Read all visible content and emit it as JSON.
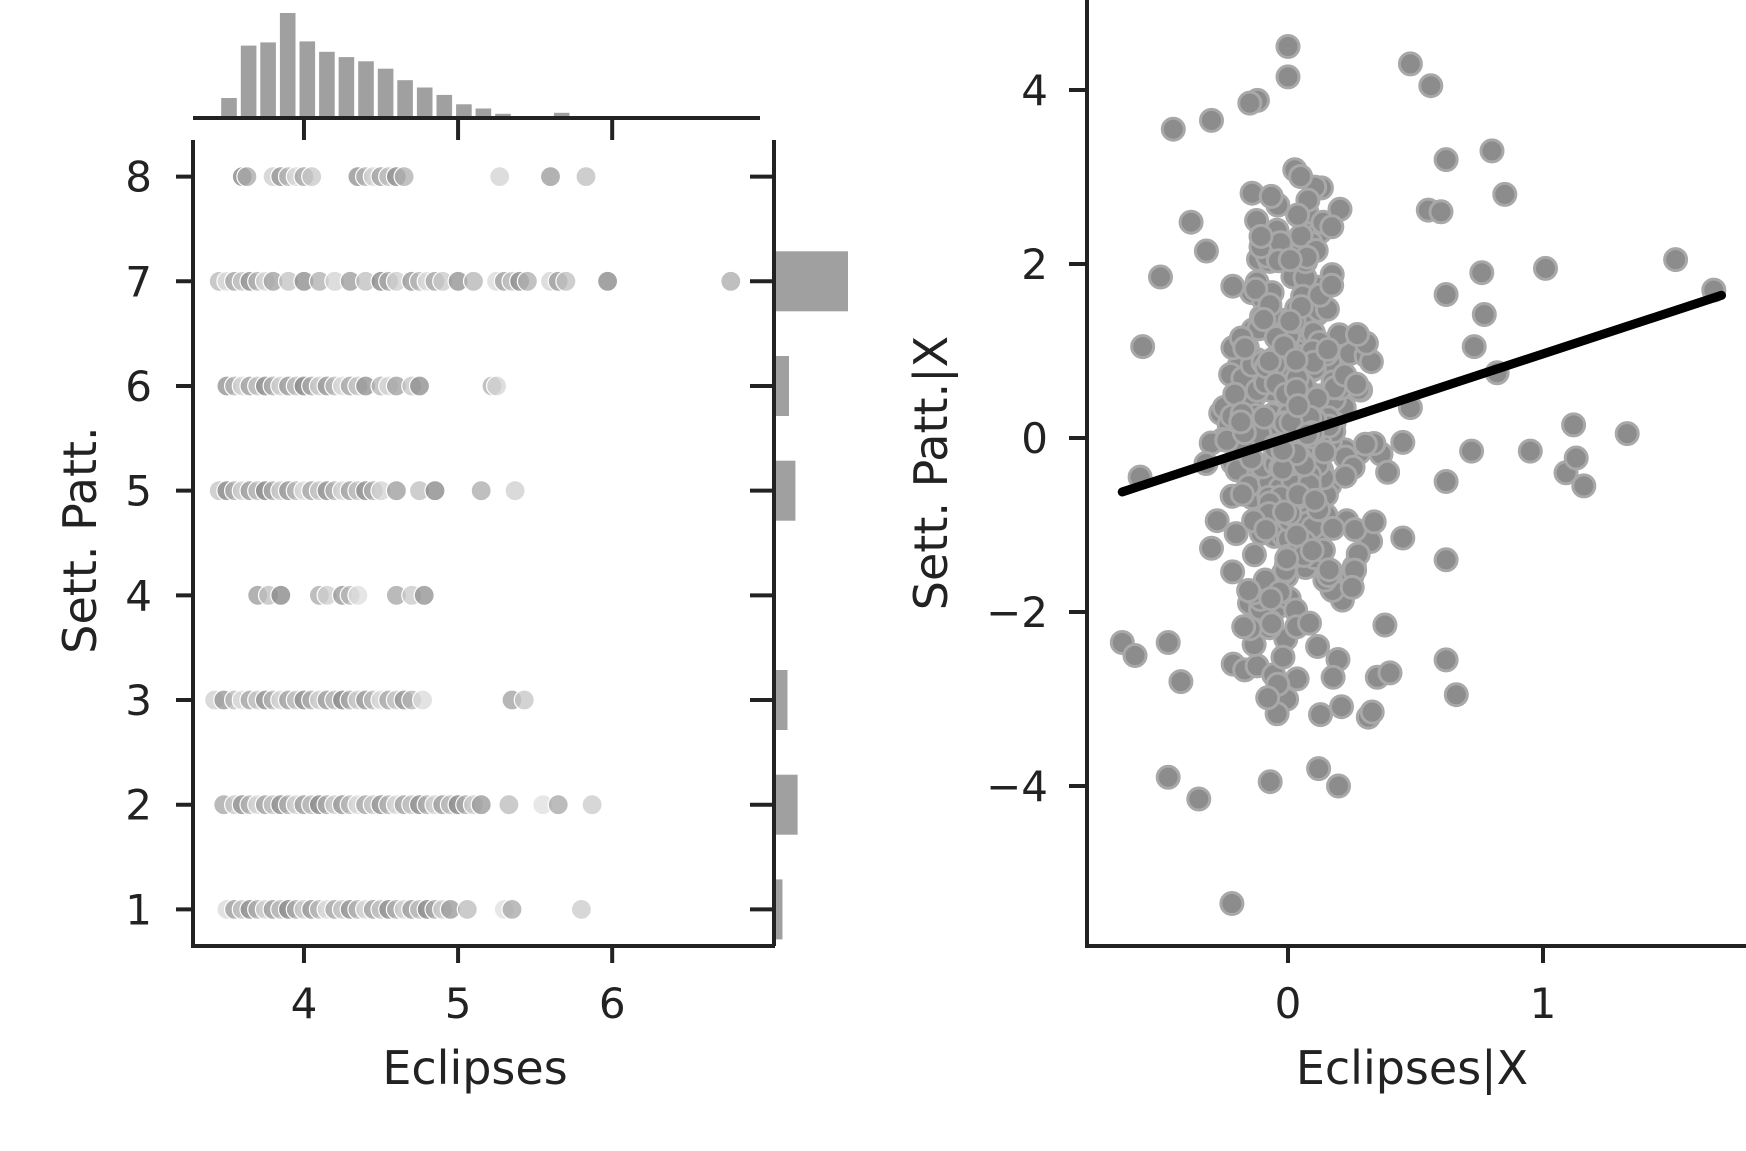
{
  "colors": {
    "axis": "#222222",
    "points": "#8c8c8c",
    "histogram": "#a0a0a0",
    "fit_line": "#000000",
    "background": "#ffffff"
  },
  "chart_data": [
    {
      "type": "scatter",
      "xlabel": "Eclipses",
      "ylabel": "Sett. Patt.",
      "xlim": [
        3.28,
        7.05
      ],
      "ylim": [
        0.65,
        8.35
      ],
      "xticks": [
        "4",
        "5",
        "6"
      ],
      "xtick_values": [
        4,
        5,
        6
      ],
      "yticks": [
        "1",
        "2",
        "3",
        "4",
        "5",
        "6",
        "7",
        "8"
      ],
      "ytick_values": [
        1,
        2,
        3,
        4,
        5,
        6,
        7,
        8
      ],
      "grid": false,
      "points": [
        {
          "y": 8,
          "x": [
            3.6,
            3.63,
            3.8,
            3.85,
            3.9,
            3.95,
            4.0,
            4.05,
            4.35,
            4.4,
            4.45,
            4.5,
            4.55,
            4.6,
            4.65,
            5.27,
            5.6,
            5.83
          ]
        },
        {
          "y": 7,
          "x": [
            3.45,
            3.5,
            3.55,
            3.6,
            3.65,
            3.7,
            3.75,
            3.8,
            3.9,
            4.0,
            4.1,
            4.2,
            4.3,
            4.4,
            4.5,
            4.55,
            4.6,
            4.7,
            4.75,
            4.8,
            4.85,
            4.9,
            5.0,
            5.1,
            5.25,
            5.3,
            5.35,
            5.4,
            5.45,
            5.6,
            5.65,
            5.7,
            5.97,
            6.77
          ]
        },
        {
          "y": 6,
          "x": [
            3.5,
            3.55,
            3.6,
            3.65,
            3.7,
            3.75,
            3.8,
            3.85,
            3.9,
            3.95,
            4.0,
            4.05,
            4.1,
            4.15,
            4.2,
            4.25,
            4.3,
            4.35,
            4.4,
            4.5,
            4.55,
            4.6,
            4.7,
            4.75,
            5.22,
            5.25
          ]
        },
        {
          "y": 5,
          "x": [
            3.45,
            3.5,
            3.55,
            3.6,
            3.65,
            3.7,
            3.75,
            3.8,
            3.85,
            3.9,
            3.95,
            4.0,
            4.05,
            4.1,
            4.15,
            4.2,
            4.25,
            4.3,
            4.35,
            4.4,
            4.45,
            4.5,
            4.6,
            4.75,
            4.85,
            5.15,
            5.37
          ]
        },
        {
          "y": 4,
          "x": [
            3.7,
            3.77,
            3.85,
            4.1,
            4.15,
            4.25,
            4.3,
            4.35,
            4.6,
            4.7,
            4.78
          ]
        },
        {
          "y": 3,
          "x": [
            3.42,
            3.48,
            3.55,
            3.6,
            3.65,
            3.7,
            3.75,
            3.8,
            3.85,
            3.9,
            3.95,
            4.0,
            4.05,
            4.1,
            4.15,
            4.2,
            4.25,
            4.3,
            4.35,
            4.4,
            4.45,
            4.5,
            4.55,
            4.6,
            4.65,
            4.7,
            4.77,
            5.35,
            5.43
          ]
        },
        {
          "y": 2,
          "x": [
            3.48,
            3.55,
            3.6,
            3.65,
            3.7,
            3.75,
            3.8,
            3.85,
            3.9,
            3.95,
            4.0,
            4.05,
            4.1,
            4.15,
            4.2,
            4.25,
            4.3,
            4.35,
            4.4,
            4.45,
            4.5,
            4.55,
            4.6,
            4.65,
            4.7,
            4.75,
            4.8,
            4.85,
            4.9,
            4.95,
            5.0,
            5.05,
            5.1,
            5.15,
            5.33,
            5.55,
            5.65,
            5.87
          ]
        },
        {
          "y": 1,
          "x": [
            3.5,
            3.55,
            3.6,
            3.65,
            3.7,
            3.75,
            3.8,
            3.85,
            3.9,
            3.95,
            4.0,
            4.05,
            4.1,
            4.15,
            4.2,
            4.25,
            4.3,
            4.35,
            4.4,
            4.45,
            4.5,
            4.55,
            4.6,
            4.65,
            4.7,
            4.75,
            4.8,
            4.85,
            4.9,
            4.95,
            5.06,
            5.3,
            5.35,
            5.8
          ]
        }
      ],
      "marginal_x_histogram": {
        "bin_start": 3.45,
        "bin_width": 0.127,
        "counts": [
          19,
          69,
          72,
          100,
          73,
          63,
          58,
          54,
          47,
          36,
          29,
          22,
          13,
          9,
          4,
          0,
          0,
          5
        ]
      },
      "marginal_y_histogram": {
        "categories": [
          1,
          2,
          3,
          5,
          6,
          7
        ],
        "counts": [
          9,
          30,
          16,
          27,
          18,
          100
        ]
      }
    },
    {
      "type": "scatter",
      "xlabel": "Eclipses|X",
      "ylabel": "Sett. Patt.|X",
      "xlim": [
        -0.8,
        1.8
      ],
      "ylim": [
        -5.8,
        5.0
      ],
      "xticks": [
        "0",
        "1"
      ],
      "xtick_values": [
        0,
        1
      ],
      "yticks": [
        "4",
        "2",
        "0",
        "−2",
        "−4"
      ],
      "ytick_values": [
        4,
        2,
        0,
        -2,
        -4
      ],
      "grid": false,
      "regression_line": {
        "x": [
          -0.65,
          1.7
        ],
        "y": [
          -0.62,
          1.64
        ]
      },
      "outliers": [
        [
          0.0,
          4.5
        ],
        [
          0.0,
          4.15
        ],
        [
          -0.12,
          3.88
        ],
        [
          -0.15,
          3.85
        ],
        [
          -0.3,
          3.65
        ],
        [
          -0.45,
          3.55
        ],
        [
          0.48,
          4.3
        ],
        [
          0.56,
          4.05
        ],
        [
          0.62,
          3.2
        ],
        [
          0.8,
          3.3
        ],
        [
          0.85,
          2.8
        ],
        [
          0.55,
          2.62
        ],
        [
          0.6,
          2.6
        ],
        [
          1.01,
          1.95
        ],
        [
          1.52,
          2.05
        ],
        [
          1.67,
          1.7
        ],
        [
          0.76,
          1.9
        ],
        [
          0.77,
          1.42
        ],
        [
          0.62,
          1.65
        ],
        [
          0.73,
          1.05
        ],
        [
          0.82,
          0.75
        ],
        [
          0.95,
          -0.15
        ],
        [
          1.12,
          0.15
        ],
        [
          1.09,
          -0.4
        ],
        [
          1.13,
          -0.23
        ],
        [
          1.16,
          -0.55
        ],
        [
          1.33,
          0.05
        ],
        [
          0.62,
          -0.5
        ],
        [
          0.72,
          -0.15
        ],
        [
          0.62,
          -1.4
        ],
        [
          0.62,
          -2.55
        ],
        [
          0.66,
          -2.95
        ],
        [
          -0.65,
          -2.35
        ],
        [
          -0.6,
          -2.5
        ],
        [
          -0.47,
          -2.35
        ],
        [
          -0.42,
          -2.8
        ],
        [
          -0.47,
          -3.9
        ],
        [
          -0.35,
          -4.15
        ],
        [
          -0.22,
          -5.35
        ],
        [
          -0.07,
          -3.95
        ],
        [
          0.12,
          -3.8
        ],
        [
          -0.58,
          -0.45
        ],
        [
          -0.57,
          1.05
        ],
        [
          -0.5,
          1.85
        ],
        [
          -0.38,
          2.48
        ],
        [
          -0.32,
          2.15
        ],
        [
          0.38,
          -2.15
        ],
        [
          0.35,
          -2.75
        ],
        [
          0.33,
          -3.15
        ],
        [
          0.4,
          -2.7
        ],
        [
          0.45,
          -1.15
        ],
        [
          0.45,
          -0.05
        ],
        [
          0.48,
          0.35
        ]
      ],
      "dense_cluster": {
        "center_x": 0.02,
        "center_y": 0.0,
        "count": 420
      }
    }
  ]
}
